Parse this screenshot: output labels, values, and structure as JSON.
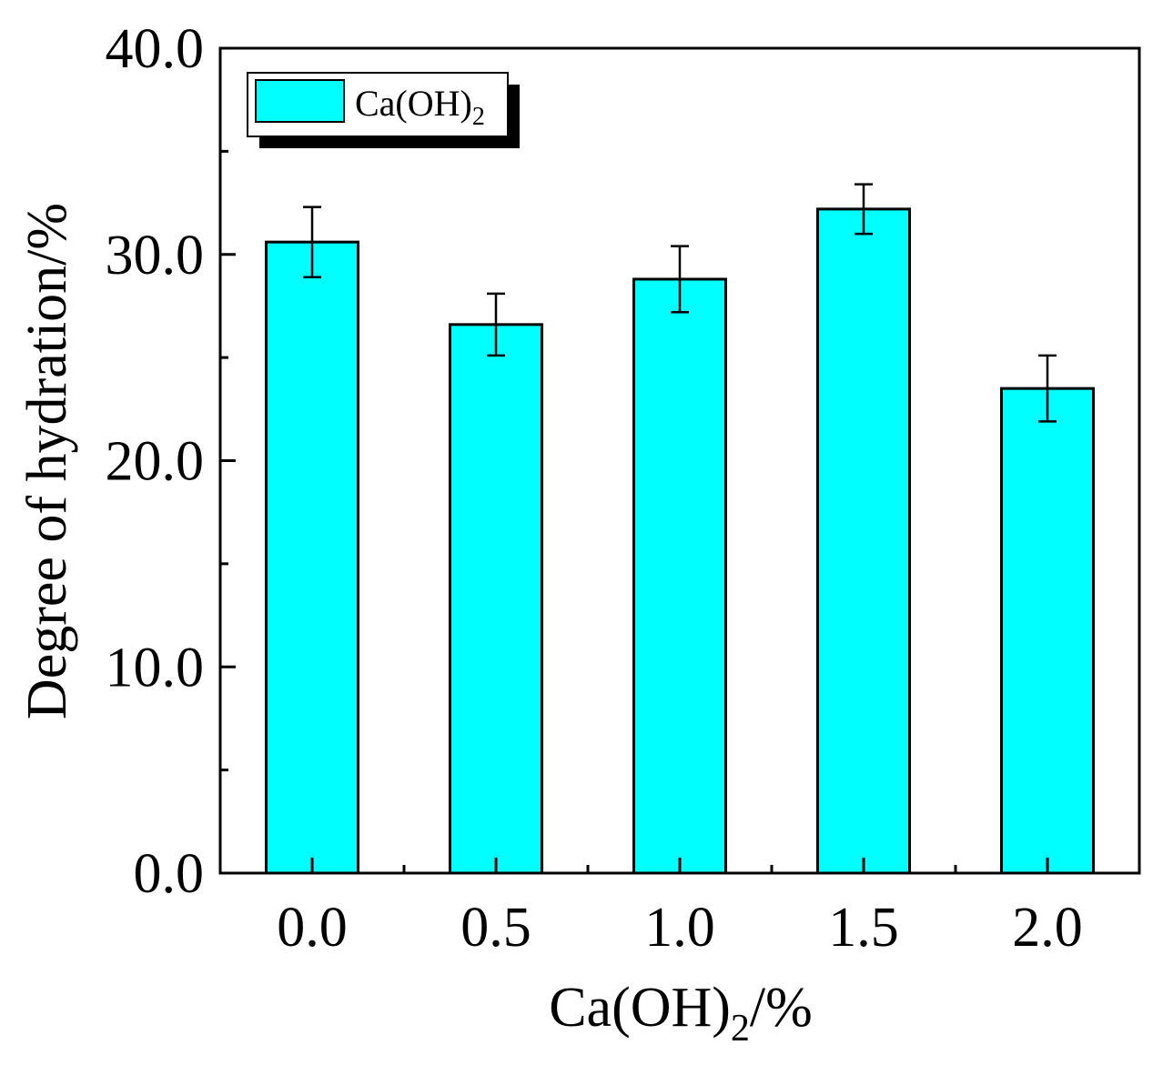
{
  "chart_data": {
    "type": "bar",
    "title": "",
    "xlabel": {
      "main": "Ca(OH)",
      "sub": "2",
      "suffix": "/%"
    },
    "ylabel": "Degree of hydration/%",
    "categories": [
      "0.0",
      "0.5",
      "1.0",
      "1.5",
      "2.0"
    ],
    "series": [
      {
        "name": {
          "main": "Ca(OH)",
          "sub": "2"
        },
        "values": [
          30.6,
          26.6,
          28.8,
          32.2,
          23.5
        ],
        "errors": [
          1.7,
          1.5,
          1.6,
          1.2,
          1.6
        ],
        "color": "#00FFFF"
      }
    ],
    "ylim": [
      0,
      40
    ],
    "yticks": [
      "0.0",
      "10.0",
      "20.0",
      "30.0",
      "40.0"
    ],
    "ytick_values": [
      0,
      10,
      20,
      30,
      40
    ],
    "grid": false,
    "legend_position": "top-left"
  }
}
